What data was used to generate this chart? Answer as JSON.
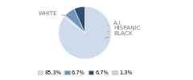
{
  "labels": [
    "WHITE",
    "A.I.",
    "HISPANIC",
    "BLACK"
  ],
  "values": [
    85.3,
    1.3,
    6.7,
    6.7
  ],
  "colors": [
    "#cfdaea",
    "#c5d5e5",
    "#6e96b8",
    "#2e4e6e"
  ],
  "legend_order": [
    0,
    2,
    3,
    1
  ],
  "legend_labels": [
    "85.3%",
    "6.7%",
    "6.7%",
    "1.3%"
  ],
  "legend_colors": [
    "#cfdaea",
    "#6e96b8",
    "#2e4e6e",
    "#c5d5e5"
  ],
  "label_fontsize": 5.2,
  "legend_fontsize": 4.8,
  "bg_color": "#ffffff",
  "text_color": "#777777",
  "line_color": "#999999"
}
